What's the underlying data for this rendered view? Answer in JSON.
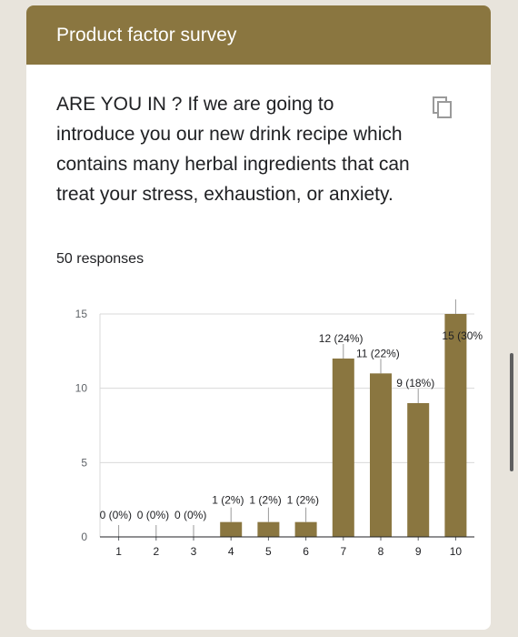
{
  "form": {
    "title": "Product factor survey",
    "question": "ARE YOU IN ? If we are going to introduce you our new drink recipe which contains many herbal ingredients that can treat your stress, exhaustion, or anxiety.",
    "responses": "50 responses",
    "copy_icon": "copy-icon"
  },
  "colors": {
    "banner": "#8a7640",
    "bar": "#8a7640",
    "background": "#e8e4dc"
  },
  "chart_data": {
    "type": "bar",
    "categories": [
      "1",
      "2",
      "3",
      "4",
      "5",
      "6",
      "7",
      "8",
      "9",
      "10"
    ],
    "values": [
      0,
      0,
      0,
      1,
      1,
      1,
      12,
      11,
      9,
      15
    ],
    "data_labels": [
      "0 (0%)",
      "0 (0%)",
      "0 (0%)",
      "1 (2%)",
      "1 (2%)",
      "1 (2%)",
      "12 (24%)",
      "11 (22%)",
      "9 (18%)",
      "15 (30%"
    ],
    "y_ticks": [
      "0",
      "5",
      "10",
      "15"
    ],
    "ylim": [
      0,
      15
    ],
    "grid": true,
    "title": "",
    "xlabel": "",
    "ylabel": ""
  }
}
